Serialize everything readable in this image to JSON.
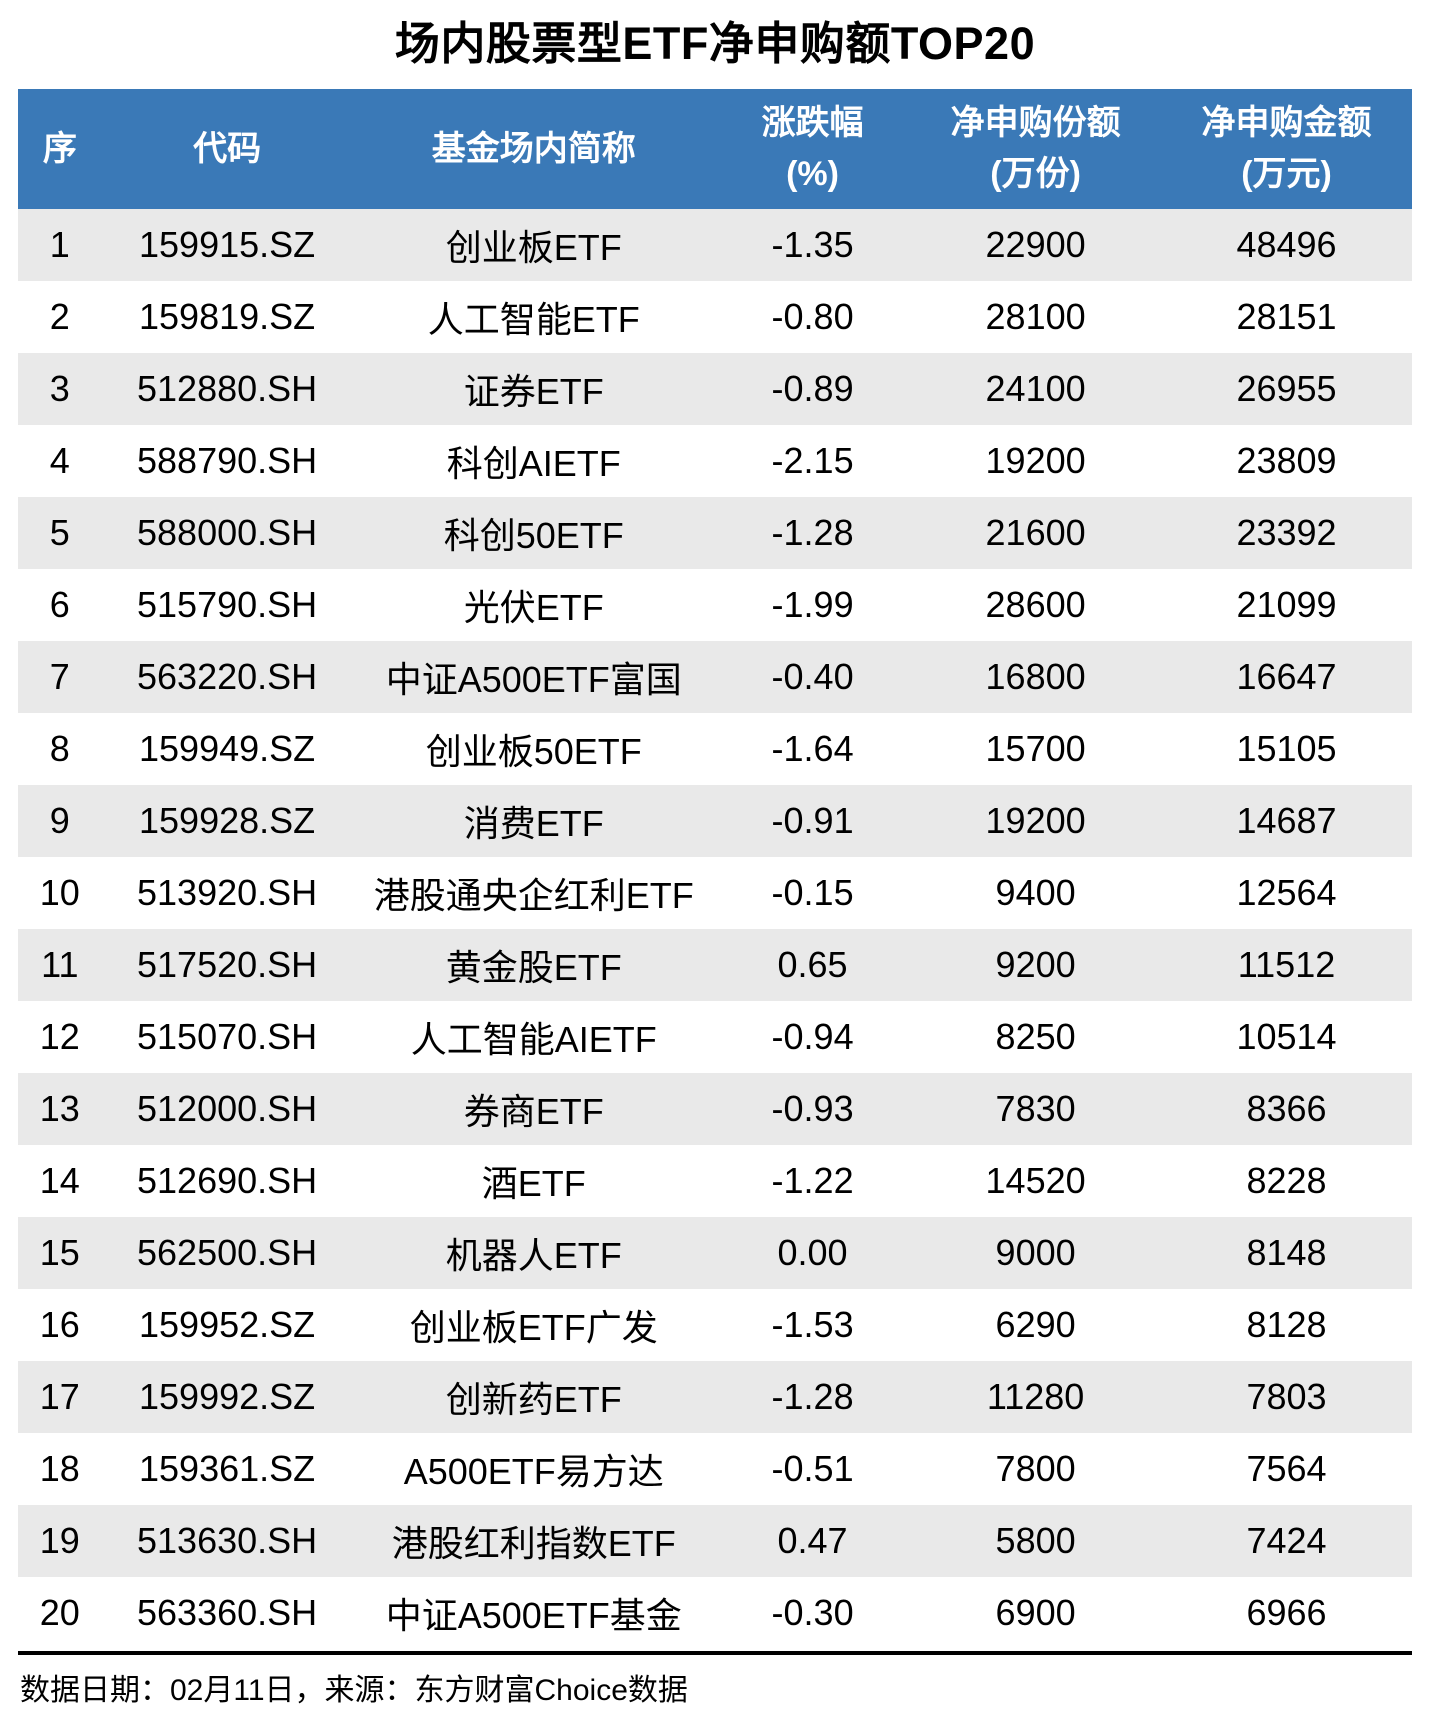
{
  "page": {
    "title": "场内股票型ETF净申购额TOP20",
    "footer": "数据日期：02月11日，来源：东方财富Choice数据"
  },
  "colors": {
    "header_bg": "#3a79b7",
    "header_text": "#ffffff",
    "row_alt_bg": "#e9e9e9",
    "rule": "#000000"
  },
  "table": {
    "columns": [
      {
        "line1": "序",
        "line2": ""
      },
      {
        "line1": "代码",
        "line2": ""
      },
      {
        "line1": "基金场内简称",
        "line2": ""
      },
      {
        "line1": "涨跌幅",
        "line2": "(%)"
      },
      {
        "line1": "净申购份额",
        "line2": "(万份)"
      },
      {
        "line1": "净申购金额",
        "line2": "(万元)"
      }
    ],
    "rows": [
      [
        "1",
        "159915.SZ",
        "创业板ETF",
        "-1.35",
        "22900",
        "48496"
      ],
      [
        "2",
        "159819.SZ",
        "人工智能ETF",
        "-0.80",
        "28100",
        "28151"
      ],
      [
        "3",
        "512880.SH",
        "证券ETF",
        "-0.89",
        "24100",
        "26955"
      ],
      [
        "4",
        "588790.SH",
        "科创AIETF",
        "-2.15",
        "19200",
        "23809"
      ],
      [
        "5",
        "588000.SH",
        "科创50ETF",
        "-1.28",
        "21600",
        "23392"
      ],
      [
        "6",
        "515790.SH",
        "光伏ETF",
        "-1.99",
        "28600",
        "21099"
      ],
      [
        "7",
        "563220.SH",
        "中证A500ETF富国",
        "-0.40",
        "16800",
        "16647"
      ],
      [
        "8",
        "159949.SZ",
        "创业板50ETF",
        "-1.64",
        "15700",
        "15105"
      ],
      [
        "9",
        "159928.SZ",
        "消费ETF",
        "-0.91",
        "19200",
        "14687"
      ],
      [
        "10",
        "513920.SH",
        "港股通央企红利ETF",
        "-0.15",
        "9400",
        "12564"
      ],
      [
        "11",
        "517520.SH",
        "黄金股ETF",
        "0.65",
        "9200",
        "11512"
      ],
      [
        "12",
        "515070.SH",
        "人工智能AIETF",
        "-0.94",
        "8250",
        "10514"
      ],
      [
        "13",
        "512000.SH",
        "券商ETF",
        "-0.93",
        "7830",
        "8366"
      ],
      [
        "14",
        "512690.SH",
        "酒ETF",
        "-1.22",
        "14520",
        "8228"
      ],
      [
        "15",
        "562500.SH",
        "机器人ETF",
        "0.00",
        "9000",
        "8148"
      ],
      [
        "16",
        "159952.SZ",
        "创业板ETF广发",
        "-1.53",
        "6290",
        "8128"
      ],
      [
        "17",
        "159992.SZ",
        "创新药ETF",
        "-1.28",
        "11280",
        "7803"
      ],
      [
        "18",
        "159361.SZ",
        "A500ETF易方达",
        "-0.51",
        "7800",
        "7564"
      ],
      [
        "19",
        "513630.SH",
        "港股红利指数ETF",
        "0.47",
        "5800",
        "7424"
      ],
      [
        "20",
        "563360.SH",
        "中证A500ETF基金",
        "-0.30",
        "6900",
        "6966"
      ]
    ]
  },
  "chart_data": {
    "type": "table",
    "title": "场内股票型ETF净申购额TOP20",
    "columns": [
      "序",
      "代码",
      "基金场内简称",
      "涨跌幅(%)",
      "净申购份额(万份)",
      "净申购金额(万元)"
    ],
    "rows": [
      [
        1,
        "159915.SZ",
        "创业板ETF",
        -1.35,
        22900,
        48496
      ],
      [
        2,
        "159819.SZ",
        "人工智能ETF",
        -0.8,
        28100,
        28151
      ],
      [
        3,
        "512880.SH",
        "证券ETF",
        -0.89,
        24100,
        26955
      ],
      [
        4,
        "588790.SH",
        "科创AIETF",
        -2.15,
        19200,
        23809
      ],
      [
        5,
        "588000.SH",
        "科创50ETF",
        -1.28,
        21600,
        23392
      ],
      [
        6,
        "515790.SH",
        "光伏ETF",
        -1.99,
        28600,
        21099
      ],
      [
        7,
        "563220.SH",
        "中证A500ETF富国",
        -0.4,
        16800,
        16647
      ],
      [
        8,
        "159949.SZ",
        "创业板50ETF",
        -1.64,
        15700,
        15105
      ],
      [
        9,
        "159928.SZ",
        "消费ETF",
        -0.91,
        19200,
        14687
      ],
      [
        10,
        "513920.SH",
        "港股通央企红利ETF",
        -0.15,
        9400,
        12564
      ],
      [
        11,
        "517520.SH",
        "黄金股ETF",
        0.65,
        9200,
        11512
      ],
      [
        12,
        "515070.SH",
        "人工智能AIETF",
        -0.94,
        8250,
        10514
      ],
      [
        13,
        "512000.SH",
        "券商ETF",
        -0.93,
        7830,
        8366
      ],
      [
        14,
        "512690.SH",
        "酒ETF",
        -1.22,
        14520,
        8228
      ],
      [
        15,
        "562500.SH",
        "机器人ETF",
        0.0,
        9000,
        8148
      ],
      [
        16,
        "159952.SZ",
        "创业板ETF广发",
        -1.53,
        6290,
        8128
      ],
      [
        17,
        "159992.SZ",
        "创新药ETF",
        -1.28,
        11280,
        7803
      ],
      [
        18,
        "159361.SZ",
        "A500ETF易方达",
        -0.51,
        7800,
        7564
      ],
      [
        19,
        "513630.SH",
        "港股红利指数ETF",
        0.47,
        5800,
        7424
      ],
      [
        20,
        "563360.SH",
        "中证A500ETF基金",
        -0.3,
        6900,
        6966
      ]
    ],
    "footnote": "数据日期：02月11日，来源：东方财富Choice数据"
  }
}
